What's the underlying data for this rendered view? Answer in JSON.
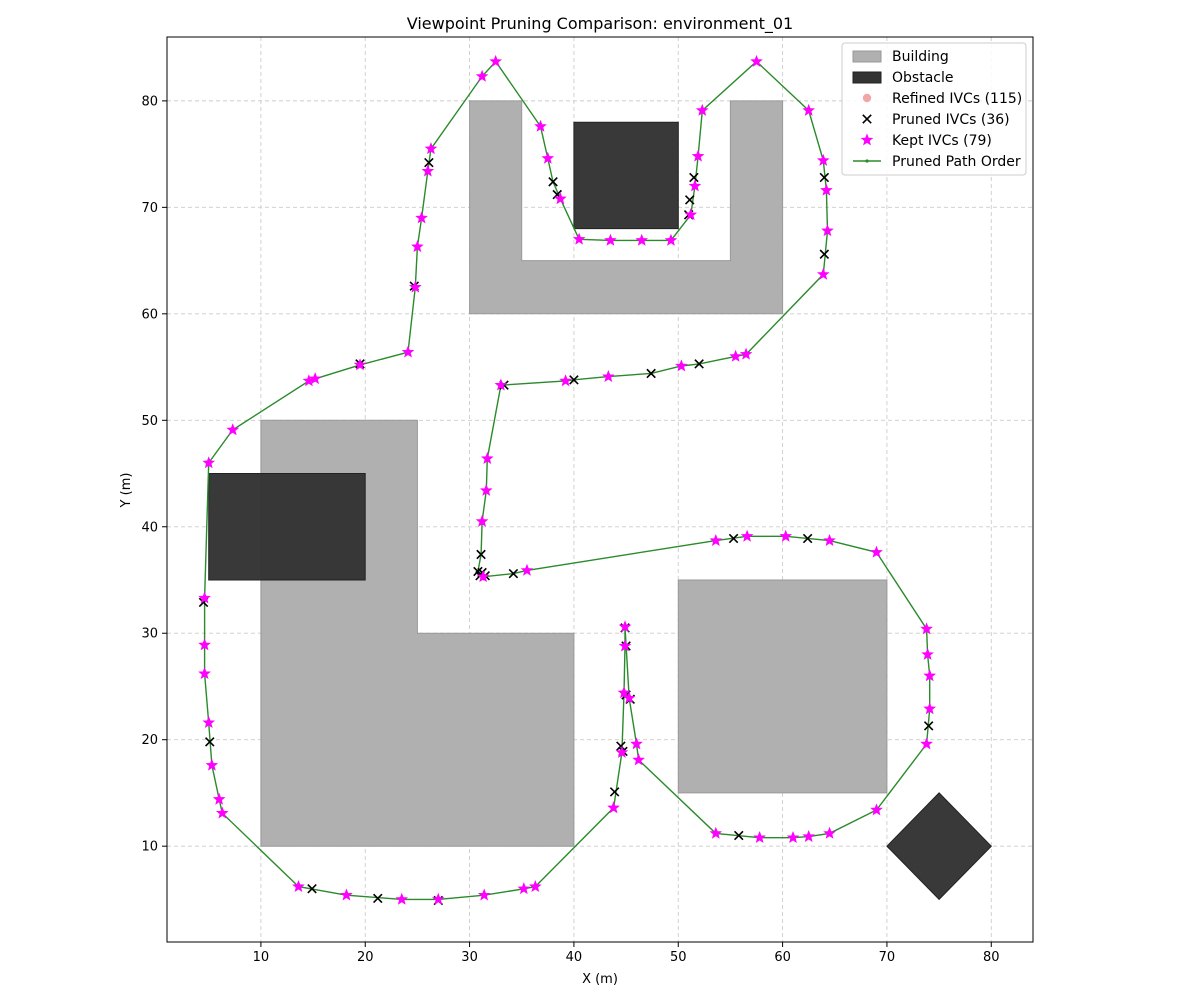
{
  "chart_data": {
    "type": "scatter",
    "title": "Viewpoint Pruning Comparison: environment_01",
    "xlabel": "X (m)",
    "ylabel": "Y (m)",
    "xlim": [
      1,
      84
    ],
    "ylim": [
      1,
      86
    ],
    "xticks": [
      10,
      20,
      30,
      40,
      50,
      60,
      70,
      80
    ],
    "yticks": [
      10,
      20,
      30,
      40,
      50,
      60,
      70,
      80
    ],
    "grid": true,
    "legend_position": "top-right",
    "legend": [
      {
        "key": "building",
        "label": "Building",
        "kind": "patch",
        "color": "#b0b0b0"
      },
      {
        "key": "obstacle",
        "label": "Obstacle",
        "kind": "patch",
        "color": "#333333"
      },
      {
        "key": "refined",
        "label": "Refined IVCs (115)",
        "kind": "dot",
        "color": "#f3a6a6"
      },
      {
        "key": "pruned",
        "label": "Pruned IVCs (36)",
        "kind": "cross",
        "color": "#000000"
      },
      {
        "key": "kept",
        "label": "Kept IVCs (79)",
        "kind": "star",
        "color": "#ff00ff"
      },
      {
        "key": "path",
        "label": "Pruned Path Order",
        "kind": "line",
        "color": "#2b8a2b"
      }
    ],
    "colors": {
      "building": "#b0b0b0",
      "obstacle": "#333333",
      "refined": "#f3a6a6",
      "pruned": "#000000",
      "kept": "#ff00ff",
      "path": "#2b8a2b"
    },
    "buildings": [
      [
        [
          30,
          80
        ],
        [
          35,
          80
        ],
        [
          35,
          65
        ],
        [
          55,
          65
        ],
        [
          55,
          80
        ],
        [
          60,
          80
        ],
        [
          60,
          60
        ],
        [
          30,
          60
        ]
      ],
      [
        [
          10,
          50
        ],
        [
          25,
          50
        ],
        [
          25,
          30
        ],
        [
          40,
          30
        ],
        [
          40,
          10
        ],
        [
          10,
          10
        ]
      ],
      [
        [
          50,
          35
        ],
        [
          70,
          35
        ],
        [
          70,
          15
        ],
        [
          50,
          15
        ]
      ]
    ],
    "obstacles": [
      [
        [
          40,
          78
        ],
        [
          50,
          78
        ],
        [
          50,
          68
        ],
        [
          40,
          68
        ]
      ],
      [
        [
          5,
          45
        ],
        [
          20,
          45
        ],
        [
          20,
          35
        ],
        [
          5,
          35
        ]
      ],
      [
        [
          75,
          15
        ],
        [
          80,
          10
        ],
        [
          75,
          5
        ],
        [
          70,
          10
        ]
      ]
    ],
    "kept_points": [
      [
        31.2,
        82.3
      ],
      [
        32.5,
        83.7
      ],
      [
        36.8,
        77.6
      ],
      [
        37.5,
        74.6
      ],
      [
        38.7,
        70.8
      ],
      [
        40.5,
        67.0
      ],
      [
        43.5,
        66.9
      ],
      [
        46.5,
        66.9
      ],
      [
        49.3,
        66.9
      ],
      [
        51.2,
        69.3
      ],
      [
        51.6,
        72.0
      ],
      [
        51.9,
        74.8
      ],
      [
        52.3,
        79.1
      ],
      [
        57.5,
        83.7
      ],
      [
        62.5,
        79.1
      ],
      [
        63.9,
        74.4
      ],
      [
        64.2,
        71.6
      ],
      [
        64.3,
        67.8
      ],
      [
        63.9,
        63.7
      ],
      [
        56.5,
        56.2
      ],
      [
        55.5,
        56.0
      ],
      [
        50.3,
        55.1
      ],
      [
        43.3,
        54.1
      ],
      [
        39.2,
        53.7
      ],
      [
        33.0,
        53.3
      ],
      [
        31.7,
        46.4
      ],
      [
        31.6,
        43.4
      ],
      [
        31.2,
        40.5
      ],
      [
        35.5,
        35.9
      ],
      [
        31.3,
        35.3
      ],
      [
        26.3,
        75.5
      ],
      [
        26.0,
        73.4
      ],
      [
        25.4,
        69.0
      ],
      [
        25.0,
        66.3
      ],
      [
        24.8,
        62.5
      ],
      [
        24.1,
        56.4
      ],
      [
        19.5,
        55.2
      ],
      [
        15.2,
        53.9
      ],
      [
        14.6,
        53.7
      ],
      [
        7.3,
        49.1
      ],
      [
        5.0,
        46.0
      ],
      [
        4.6,
        33.3
      ],
      [
        4.6,
        28.9
      ],
      [
        4.6,
        26.2
      ],
      [
        5.0,
        21.6
      ],
      [
        5.3,
        17.6
      ],
      [
        6.0,
        14.4
      ],
      [
        6.3,
        13.1
      ],
      [
        13.6,
        6.2
      ],
      [
        18.2,
        5.4
      ],
      [
        23.5,
        5.0
      ],
      [
        27.0,
        5.0
      ],
      [
        31.4,
        5.4
      ],
      [
        35.2,
        6.0
      ],
      [
        36.3,
        6.2
      ],
      [
        43.8,
        13.6
      ],
      [
        44.6,
        18.8
      ],
      [
        44.8,
        24.4
      ],
      [
        44.9,
        30.6
      ],
      [
        45.3,
        23.9
      ],
      [
        46.0,
        19.6
      ],
      [
        46.2,
        18.1
      ],
      [
        53.6,
        11.2
      ],
      [
        57.8,
        10.8
      ],
      [
        61.0,
        10.8
      ],
      [
        62.5,
        10.9
      ],
      [
        64.5,
        11.2
      ],
      [
        69.0,
        13.4
      ],
      [
        73.8,
        19.6
      ],
      [
        74.1,
        22.9
      ],
      [
        74.1,
        26.0
      ],
      [
        73.9,
        28.0
      ],
      [
        73.8,
        30.4
      ],
      [
        69.0,
        37.6
      ],
      [
        64.5,
        38.7
      ],
      [
        60.3,
        39.1
      ],
      [
        56.6,
        39.1
      ],
      [
        53.6,
        38.7
      ],
      [
        44.9,
        28.8
      ]
    ],
    "pruned_points": [
      [
        38.0,
        72.4
      ],
      [
        38.4,
        71.2
      ],
      [
        51.1,
        70.7
      ],
      [
        51.0,
        69.3
      ],
      [
        51.5,
        72.8
      ],
      [
        64.0,
        72.8
      ],
      [
        64.0,
        65.6
      ],
      [
        52.0,
        55.3
      ],
      [
        47.4,
        54.4
      ],
      [
        40.0,
        53.8
      ],
      [
        33.3,
        53.3
      ],
      [
        31.1,
        37.4
      ],
      [
        30.8,
        35.8
      ],
      [
        31.5,
        35.4
      ],
      [
        34.2,
        35.6
      ],
      [
        26.1,
        74.2
      ],
      [
        24.7,
        62.6
      ],
      [
        19.5,
        55.3
      ],
      [
        4.5,
        32.9
      ],
      [
        5.1,
        19.8
      ],
      [
        14.9,
        6.0
      ],
      [
        21.2,
        5.1
      ],
      [
        27.0,
        4.9
      ],
      [
        43.9,
        15.1
      ],
      [
        44.5,
        19.4
      ],
      [
        45.0,
        28.8
      ],
      [
        44.9,
        30.5
      ],
      [
        45.4,
        23.8
      ],
      [
        55.8,
        11.0
      ],
      [
        74.0,
        21.3
      ],
      [
        55.3,
        38.9
      ],
      [
        62.4,
        38.9
      ],
      [
        31.2,
        35.7
      ],
      [
        31.0,
        35.4
      ],
      [
        45.0,
        24.2
      ],
      [
        44.7,
        18.9
      ]
    ],
    "path": [
      [
        5.0,
        46.0
      ],
      [
        7.3,
        49.1
      ],
      [
        14.6,
        53.7
      ],
      [
        15.2,
        53.9
      ],
      [
        19.5,
        55.2
      ],
      [
        24.1,
        56.4
      ],
      [
        24.8,
        62.5
      ],
      [
        25.0,
        66.3
      ],
      [
        25.4,
        69.0
      ],
      [
        26.0,
        73.4
      ],
      [
        26.3,
        75.5
      ],
      [
        31.2,
        82.3
      ],
      [
        32.5,
        83.7
      ],
      [
        36.8,
        77.6
      ],
      [
        37.5,
        74.6
      ],
      [
        38.0,
        72.4
      ],
      [
        38.7,
        70.8
      ],
      [
        40.5,
        67.0
      ],
      [
        43.5,
        66.9
      ],
      [
        46.5,
        66.9
      ],
      [
        49.3,
        66.9
      ],
      [
        51.2,
        69.3
      ],
      [
        51.6,
        72.0
      ],
      [
        51.9,
        74.8
      ],
      [
        52.3,
        79.1
      ],
      [
        57.5,
        83.7
      ],
      [
        62.5,
        79.1
      ],
      [
        63.9,
        74.4
      ],
      [
        64.2,
        71.6
      ],
      [
        64.3,
        67.8
      ],
      [
        63.9,
        63.7
      ],
      [
        56.5,
        56.2
      ],
      [
        55.5,
        56.0
      ],
      [
        52.0,
        55.3
      ],
      [
        50.3,
        55.1
      ],
      [
        47.4,
        54.4
      ],
      [
        43.3,
        54.1
      ],
      [
        40.0,
        53.8
      ],
      [
        39.2,
        53.7
      ],
      [
        33.0,
        53.3
      ],
      [
        31.7,
        46.4
      ],
      [
        31.6,
        43.4
      ],
      [
        31.2,
        40.5
      ],
      [
        31.1,
        37.4
      ],
      [
        30.8,
        35.8
      ],
      [
        31.3,
        35.3
      ],
      [
        34.2,
        35.6
      ],
      [
        35.5,
        35.9
      ],
      [
        53.6,
        38.7
      ],
      [
        56.6,
        39.1
      ],
      [
        60.3,
        39.1
      ],
      [
        64.5,
        38.7
      ],
      [
        69.0,
        37.6
      ],
      [
        73.8,
        30.4
      ],
      [
        73.9,
        28.0
      ],
      [
        74.1,
        26.0
      ],
      [
        74.1,
        22.9
      ],
      [
        73.8,
        19.6
      ],
      [
        69.0,
        13.4
      ],
      [
        64.5,
        11.2
      ],
      [
        62.5,
        10.9
      ],
      [
        61.0,
        10.8
      ],
      [
        57.8,
        10.8
      ],
      [
        53.6,
        11.2
      ],
      [
        46.2,
        18.1
      ],
      [
        46.0,
        19.6
      ],
      [
        45.3,
        23.9
      ],
      [
        44.9,
        30.6
      ],
      [
        44.9,
        28.8
      ],
      [
        44.8,
        24.4
      ],
      [
        44.6,
        18.8
      ],
      [
        43.8,
        13.6
      ],
      [
        36.3,
        6.2
      ],
      [
        35.2,
        6.0
      ],
      [
        31.4,
        5.4
      ],
      [
        27.0,
        5.0
      ],
      [
        23.5,
        5.0
      ],
      [
        18.2,
        5.4
      ],
      [
        13.6,
        6.2
      ],
      [
        6.3,
        13.1
      ],
      [
        6.0,
        14.4
      ],
      [
        5.3,
        17.6
      ],
      [
        5.0,
        21.6
      ],
      [
        4.6,
        26.2
      ],
      [
        4.6,
        28.9
      ],
      [
        4.6,
        33.3
      ],
      [
        5.0,
        46.0
      ]
    ]
  }
}
